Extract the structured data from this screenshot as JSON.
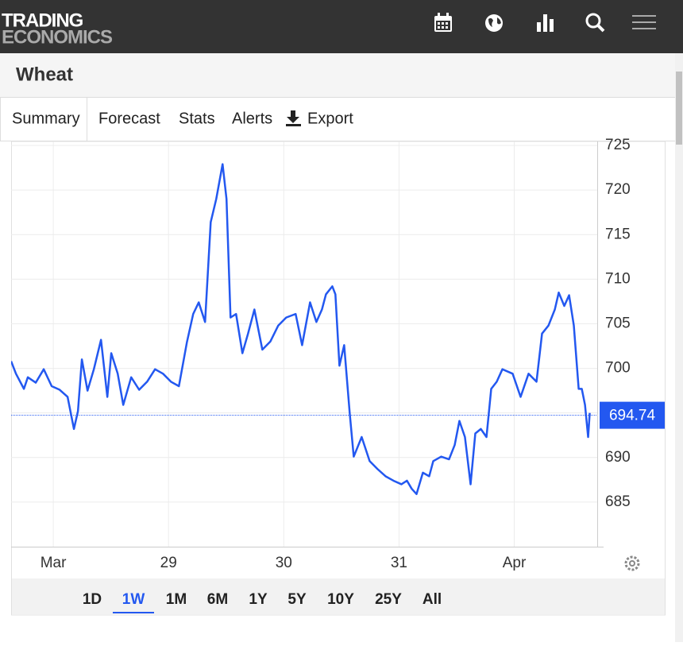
{
  "header": {
    "logo": [
      "TRADING",
      "ECONOMICS"
    ]
  },
  "title": "Wheat",
  "tabs": [
    "Summary",
    "Forecast",
    "Stats",
    "Alerts",
    "Export"
  ],
  "active_tab": 0,
  "chart_data": {
    "type": "line",
    "x": [
      27.634,
      27.676,
      27.745,
      27.779,
      27.848,
      27.917,
      27.986,
      28.055,
      28.124,
      28.179,
      28.214,
      28.248,
      28.297,
      28.352,
      28.414,
      28.469,
      28.503,
      28.559,
      28.607,
      28.676,
      28.745,
      28.814,
      28.883,
      28.952,
      29.021,
      29.09,
      29.159,
      29.214,
      29.262,
      29.317,
      29.366,
      29.414,
      29.469,
      29.503,
      29.538,
      29.586,
      29.641,
      29.69,
      29.745,
      29.814,
      29.883,
      29.952,
      30.021,
      30.103,
      30.159,
      30.228,
      30.283,
      30.331,
      30.366,
      30.421,
      30.448,
      30.483,
      30.524,
      30.572,
      30.607,
      30.676,
      30.745,
      30.814,
      30.883,
      30.952,
      31.021,
      31.069,
      31.11,
      31.152,
      31.207,
      31.262,
      31.297,
      31.366,
      31.434,
      31.483,
      31.524,
      31.572,
      31.621,
      31.662,
      31.71,
      31.759,
      31.8,
      31.848,
      31.897,
      31.986,
      32.055,
      32.124,
      32.193,
      32.241,
      32.297,
      32.352,
      32.386,
      32.434,
      32.476,
      32.517,
      32.559,
      32.586,
      32.614,
      32.641,
      32.655
    ],
    "series": [
      {
        "color": "#2358f0",
        "values": [
          700.8,
          699.4,
          697.7,
          699,
          698.4,
          699.9,
          698,
          697.6,
          696.8,
          693.2,
          695.2,
          701,
          697.5,
          699.9,
          703.2,
          696.8,
          701.7,
          699.4,
          695.9,
          699,
          697.6,
          698.5,
          699.9,
          699.4,
          698.5,
          698,
          702.9,
          706.1,
          707.4,
          705.2,
          716.4,
          719,
          722.9,
          719,
          705.7,
          706.1,
          701.7,
          703.9,
          706.6,
          702.1,
          703,
          704.8,
          705.7,
          706.1,
          702.6,
          707.4,
          705.2,
          706.6,
          708.3,
          709.2,
          708.3,
          700.3,
          702.6,
          695,
          690.1,
          692.3,
          689.6,
          688.7,
          687.9,
          687.4,
          687,
          687.4,
          686.5,
          685.9,
          688.3,
          687.9,
          689.6,
          690.1,
          689.8,
          691.4,
          694.1,
          692.3,
          687,
          692.7,
          693.2,
          692.3,
          697.7,
          698.5,
          699.9,
          699.4,
          696.8,
          699.4,
          698.5,
          703.9,
          704.8,
          706.6,
          708.5,
          707,
          708.2,
          704.8,
          697.7,
          697.7,
          695.9,
          692.3,
          695
        ]
      }
    ],
    "xlim": [
      27.634,
      32.72
    ],
    "xticks": [
      {
        "value": 28,
        "label": "Mar"
      },
      29,
      30,
      31,
      {
        "value": 32,
        "label": "Apr"
      }
    ],
    "ylim": [
      680,
      725.45
    ],
    "yticks": [
      685,
      690,
      695,
      700,
      705,
      710,
      715,
      720,
      725
    ],
    "grid": true,
    "last_value": 694.74
  },
  "ranges": [
    "1D",
    "1W",
    "1M",
    "6M",
    "1Y",
    "5Y",
    "10Y",
    "25Y",
    "All"
  ],
  "active_range": 1
}
